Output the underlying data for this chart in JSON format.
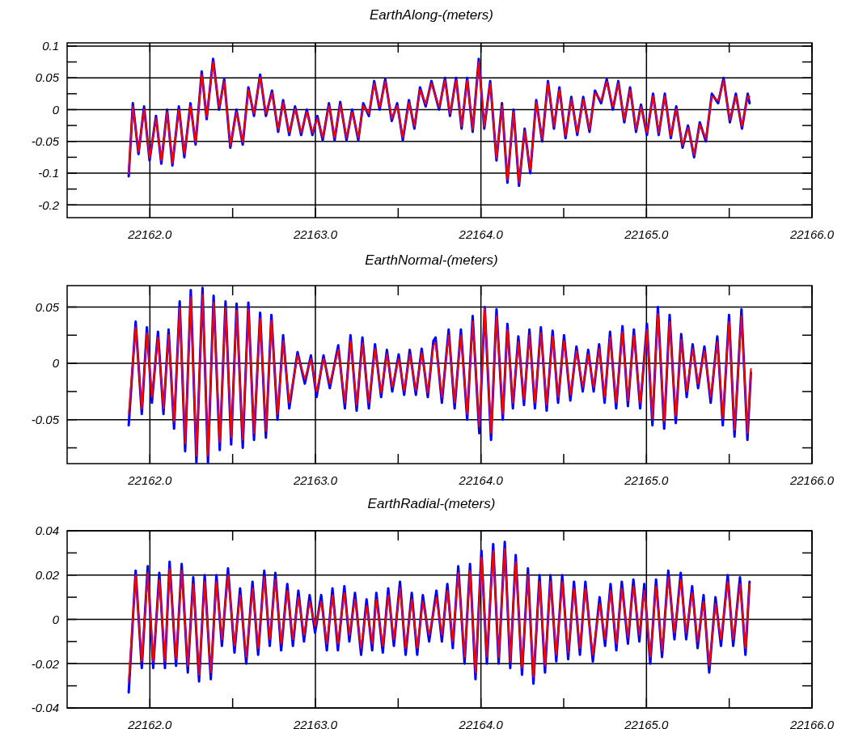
{
  "chart_data": [
    {
      "type": "line",
      "title": "EarthAlong-(meters)",
      "grid": true,
      "xlim": [
        22161.5,
        22166
      ],
      "xticks": [
        {
          "value": 22162,
          "label": "22162.0"
        },
        {
          "value": 22162.5,
          "label": null
        },
        {
          "value": 22163,
          "label": "22163.0"
        },
        {
          "value": 22163.5,
          "label": null
        },
        {
          "value": 22164,
          "label": "22164.0"
        },
        {
          "value": 22164.5,
          "label": null
        },
        {
          "value": 22165,
          "label": "22165.0"
        },
        {
          "value": 22165.5,
          "label": null
        },
        {
          "value": 22166,
          "label": "22166.0"
        }
      ],
      "ylim": [
        -0.17,
        0.105
      ],
      "yticks": [
        0.1,
        {
          "value": 0.075,
          "label": null
        },
        0.05,
        {
          "value": 0.025,
          "label": null
        },
        0,
        {
          "value": -0.025,
          "label": null
        },
        -0.05,
        {
          "value": -0.075,
          "label": null
        },
        -0.1,
        {
          "value": -0.125,
          "label": null
        },
        {
          "value": -0.15,
          "label": "-0.2"
        }
      ],
      "x": [
        22161.872,
        22161.897,
        22161.931,
        22161.965,
        22161.998,
        22162.037,
        22162.069,
        22162.104,
        22162.136,
        22162.175,
        22162.208,
        22162.245,
        22162.276,
        22162.313,
        22162.343,
        22162.382,
        22162.418,
        22162.449,
        22162.486,
        22162.523,
        22162.561,
        22162.595,
        22162.629,
        22162.666,
        22162.701,
        22162.738,
        22162.775,
        22162.805,
        22162.842,
        22162.877,
        22162.914,
        22162.948,
        22162.982,
        22163.012,
        22163.044,
        22163.082,
        22163.116,
        22163.15,
        22163.188,
        22163.222,
        22163.259,
        22163.289,
        22163.323,
        22163.355,
        22163.388,
        22163.422,
        22163.461,
        22163.494,
        22163.528,
        22163.565,
        22163.598,
        22163.632,
        22163.666,
        22163.701,
        22163.747,
        22163.783,
        22163.813,
        22163.85,
        22163.883,
        22163.917,
        22163.95,
        22163.987,
        22164.02,
        22164.056,
        22164.094,
        22164.127,
        22164.16,
        22164.197,
        22164.23,
        22164.264,
        22164.298,
        22164.334,
        22164.37,
        22164.405,
        22164.441,
        22164.474,
        22164.511,
        22164.546,
        22164.582,
        22164.618,
        22164.656,
        22164.689,
        22164.726,
        22164.76,
        22164.797,
        22164.83,
        22164.866,
        22164.901,
        22164.937,
        22164.967,
        22165.003,
        22165.04,
        22165.074,
        22165.111,
        22165.147,
        22165.18,
        22165.218,
        22165.251,
        22165.288,
        22165.322,
        22165.359,
        22165.395,
        22165.433,
        22165.466,
        22165.504,
        22165.54,
        22165.577,
        22165.612,
        22165.623
      ],
      "series": [
        {
          "color": "#0000ff",
          "values": [
            -0.105,
            0.01,
            -0.07,
            0.005,
            -0.08,
            -0.01,
            -0.085,
            0.0,
            -0.088,
            0.005,
            -0.075,
            0.01,
            -0.055,
            0.06,
            -0.015,
            0.08,
            0.0,
            0.048,
            -0.06,
            0.0,
            -0.055,
            0.035,
            -0.01,
            0.055,
            -0.01,
            0.03,
            -0.035,
            0.015,
            -0.04,
            0.005,
            -0.04,
            0.0,
            -0.04,
            -0.01,
            -0.048,
            0.01,
            -0.048,
            0.012,
            -0.048,
            0.0,
            -0.048,
            0.01,
            -0.01,
            0.045,
            0.0,
            0.048,
            -0.018,
            0.01,
            -0.048,
            0.015,
            -0.03,
            0.035,
            0.005,
            0.045,
            0.0,
            0.05,
            -0.01,
            0.05,
            -0.03,
            0.05,
            -0.035,
            0.08,
            -0.03,
            0.045,
            -0.08,
            0.01,
            -0.115,
            0.0,
            -0.12,
            -0.03,
            -0.1,
            0.015,
            -0.05,
            0.045,
            -0.03,
            0.035,
            -0.045,
            0.02,
            -0.04,
            0.02,
            -0.035,
            0.03,
            0.01,
            0.048,
            0.0,
            0.045,
            -0.02,
            0.035,
            -0.035,
            0.008,
            -0.04,
            0.025,
            -0.04,
            0.025,
            -0.045,
            0.005,
            -0.06,
            -0.025,
            -0.075,
            -0.02,
            -0.05,
            0.025,
            0.01,
            0.05,
            -0.02,
            0.025,
            -0.03,
            0.025,
            0.01
          ]
        },
        {
          "color": "#ff0000",
          "values": [
            -0.1,
            0.005,
            -0.066,
            0.0,
            -0.076,
            -0.014,
            -0.08,
            -0.004,
            -0.084,
            0.0,
            -0.07,
            0.006,
            -0.051,
            0.055,
            -0.011,
            0.075,
            0.004,
            0.044,
            -0.056,
            -0.004,
            -0.051,
            0.031,
            -0.006,
            0.051,
            -0.006,
            0.026,
            -0.031,
            0.011,
            -0.036,
            0.001,
            -0.036,
            -0.004,
            -0.036,
            -0.014,
            -0.044,
            0.006,
            -0.044,
            0.008,
            -0.044,
            -0.004,
            -0.044,
            0.006,
            -0.006,
            0.041,
            0.004,
            0.044,
            -0.014,
            0.006,
            -0.044,
            0.011,
            -0.026,
            0.031,
            0.009,
            0.041,
            0.004,
            0.046,
            -0.006,
            0.046,
            -0.026,
            0.046,
            -0.031,
            0.075,
            -0.026,
            0.041,
            -0.076,
            0.006,
            -0.11,
            -0.004,
            -0.115,
            -0.034,
            -0.095,
            0.011,
            -0.046,
            0.041,
            -0.026,
            0.031,
            -0.041,
            0.016,
            -0.036,
            0.016,
            -0.031,
            0.026,
            0.014,
            0.044,
            0.004,
            0.041,
            -0.016,
            0.031,
            -0.031,
            0.004,
            -0.036,
            0.021,
            -0.036,
            0.021,
            -0.041,
            0.001,
            -0.056,
            -0.029,
            -0.071,
            -0.024,
            -0.046,
            0.021,
            0.014,
            0.046,
            -0.016,
            0.021,
            -0.026,
            0.021,
            0.02
          ]
        }
      ]
    },
    {
      "type": "line",
      "title": "EarthNormal-(meters)",
      "grid": true,
      "xlim": [
        22161.5,
        22166
      ],
      "xticks": [
        {
          "value": 22162,
          "label": "22162.0"
        },
        {
          "value": 22162.5,
          "label": null
        },
        {
          "value": 22163,
          "label": "22163.0"
        },
        {
          "value": 22163.5,
          "label": null
        },
        {
          "value": 22164,
          "label": "22164.0"
        },
        {
          "value": 22164.5,
          "label": null
        },
        {
          "value": 22165,
          "label": "22165.0"
        },
        {
          "value": 22165.5,
          "label": null
        },
        {
          "value": 22166,
          "label": "22166.0"
        }
      ],
      "ylim": [
        -0.089,
        0.069
      ],
      "yticks": [
        0.05,
        {
          "value": 0.025,
          "label": null
        },
        0,
        {
          "value": -0.025,
          "label": null
        },
        -0.05,
        {
          "value": -0.075,
          "label": null
        }
      ],
      "x": [
        22161.872,
        22161.914,
        22161.951,
        22161.982,
        22162.012,
        22162.049,
        22162.082,
        22162.113,
        22162.146,
        22162.18,
        22162.213,
        22162.247,
        22162.281,
        22162.318,
        22162.351,
        22162.385,
        22162.422,
        22162.457,
        22162.491,
        22162.524,
        22162.561,
        22162.595,
        22162.629,
        22162.666,
        22162.701,
        22162.734,
        22162.771,
        22162.805,
        22162.842,
        22162.892,
        22162.936,
        22162.973,
        22163.007,
        22163.049,
        22163.087,
        22163.138,
        22163.178,
        22163.212,
        22163.249,
        22163.284,
        22163.323,
        22163.36,
        22163.397,
        22163.432,
        22163.464,
        22163.503,
        22163.536,
        22163.57,
        22163.607,
        22163.642,
        22163.679,
        22163.713,
        22163.726,
        22163.764,
        22163.805,
        22163.841,
        22163.879,
        22163.917,
        22163.95,
        22163.99,
        22164.023,
        22164.061,
        22164.094,
        22164.132,
        22164.16,
        22164.193,
        22164.226,
        22164.26,
        22164.293,
        22164.326,
        22164.362,
        22164.397,
        22164.433,
        22164.466,
        22164.502,
        22164.54,
        22164.577,
        22164.615,
        22164.648,
        22164.681,
        22164.714,
        22164.747,
        22164.78,
        22164.817,
        22164.855,
        22164.888,
        22164.924,
        22164.962,
        22165.003,
        22165.036,
        22165.069,
        22165.107,
        22165.14,
        22165.177,
        22165.21,
        22165.243,
        22165.279,
        22165.312,
        22165.35,
        22165.388,
        22165.428,
        22165.461,
        22165.499,
        22165.532,
        22165.574,
        22165.61,
        22165.631
      ],
      "series": [
        {
          "color": "#0000ff",
          "values": [
            -0.055,
            0.037,
            -0.045,
            0.032,
            -0.035,
            0.028,
            -0.045,
            0.03,
            -0.058,
            0.055,
            -0.078,
            0.065,
            -0.088,
            0.067,
            -0.088,
            0.06,
            -0.077,
            0.055,
            -0.072,
            0.053,
            -0.075,
            0.054,
            -0.068,
            0.045,
            -0.066,
            0.043,
            -0.05,
            0.025,
            -0.04,
            0.01,
            -0.018,
            0.007,
            -0.03,
            0.007,
            -0.022,
            0.016,
            -0.04,
            0.025,
            -0.042,
            0.023,
            -0.04,
            0.017,
            -0.03,
            0.012,
            -0.025,
            0.008,
            -0.028,
            0.012,
            -0.028,
            0.013,
            -0.03,
            0.02,
            0.023,
            -0.035,
            0.03,
            -0.04,
            0.03,
            -0.05,
            0.042,
            -0.062,
            0.05,
            -0.068,
            0.048,
            -0.05,
            0.035,
            -0.04,
            0.024,
            -0.037,
            0.03,
            -0.04,
            0.032,
            -0.042,
            0.029,
            -0.035,
            0.025,
            -0.033,
            0.015,
            -0.025,
            0.012,
            -0.025,
            0.017,
            -0.035,
            0.028,
            -0.04,
            0.033,
            -0.038,
            0.03,
            -0.04,
            0.035,
            -0.055,
            0.05,
            -0.058,
            0.043,
            -0.053,
            0.026,
            -0.03,
            0.017,
            -0.022,
            0.015,
            -0.035,
            0.024,
            -0.055,
            0.043,
            -0.065,
            0.048,
            -0.068,
            -0.008
          ]
        },
        {
          "color": "#ff0000",
          "values": [
            -0.045,
            0.032,
            -0.04,
            0.027,
            -0.03,
            0.023,
            -0.04,
            0.025,
            -0.052,
            0.049,
            -0.071,
            0.059,
            -0.082,
            0.061,
            -0.082,
            0.054,
            -0.07,
            0.049,
            -0.066,
            0.047,
            -0.068,
            0.048,
            -0.062,
            0.04,
            -0.06,
            0.038,
            -0.045,
            0.02,
            -0.035,
            0.007,
            -0.014,
            0.004,
            -0.025,
            0.004,
            -0.018,
            0.012,
            -0.035,
            0.02,
            -0.037,
            0.018,
            -0.035,
            0.013,
            -0.026,
            0.008,
            -0.021,
            0.004,
            -0.024,
            0.008,
            -0.024,
            0.009,
            -0.026,
            0.016,
            0.018,
            -0.03,
            0.025,
            -0.035,
            0.025,
            -0.045,
            0.037,
            -0.056,
            0.049,
            -0.062,
            0.042,
            -0.045,
            0.03,
            -0.035,
            0.019,
            -0.032,
            0.025,
            -0.035,
            0.027,
            -0.037,
            0.024,
            -0.03,
            0.02,
            -0.028,
            0.011,
            -0.021,
            0.008,
            -0.021,
            0.013,
            -0.03,
            0.023,
            -0.035,
            0.028,
            -0.033,
            0.025,
            -0.035,
            0.03,
            -0.049,
            0.044,
            -0.052,
            0.037,
            -0.047,
            0.021,
            -0.025,
            0.013,
            -0.018,
            0.011,
            -0.03,
            0.019,
            -0.049,
            0.037,
            -0.059,
            0.042,
            -0.062,
            -0.005
          ]
        }
      ]
    },
    {
      "type": "line",
      "title": "EarthRadial-(meters)",
      "grid": true,
      "xlim": [
        22161.5,
        22166
      ],
      "xticks": [
        {
          "value": 22162,
          "label": "22162.0"
        },
        {
          "value": 22162.5,
          "label": null
        },
        {
          "value": 22163,
          "label": "22163.0"
        },
        {
          "value": 22163.5,
          "label": null
        },
        {
          "value": 22164,
          "label": "22164.0"
        },
        {
          "value": 22164.5,
          "label": null
        },
        {
          "value": 22165,
          "label": "22165.0"
        },
        {
          "value": 22165.5,
          "label": null
        },
        {
          "value": 22166,
          "label": "22166.0"
        }
      ],
      "ylim": [
        -0.04,
        0.04
      ],
      "yticks": [
        0.04,
        {
          "value": 0.03,
          "label": null
        },
        0.02,
        {
          "value": 0.01,
          "label": null
        },
        0,
        {
          "value": -0.01,
          "label": null
        },
        -0.02,
        {
          "value": -0.03,
          "label": null
        },
        -0.04
      ],
      "x": [
        22161.872,
        22161.914,
        22161.951,
        22161.987,
        22162.02,
        22162.057,
        22162.091,
        22162.119,
        22162.158,
        22162.192,
        22162.229,
        22162.262,
        22162.297,
        22162.331,
        22162.368,
        22162.402,
        22162.435,
        22162.472,
        22162.511,
        22162.545,
        22162.582,
        22162.62,
        22162.654,
        22162.691,
        22162.724,
        22162.758,
        22162.793,
        22162.83,
        22162.864,
        22162.897,
        22162.931,
        22162.965,
        22162.998,
        22163.035,
        22163.069,
        22163.103,
        22163.136,
        22163.175,
        22163.205,
        22163.239,
        22163.276,
        22163.309,
        22163.343,
        22163.368,
        22163.407,
        22163.44,
        22163.474,
        22163.511,
        22163.545,
        22163.582,
        22163.615,
        22163.649,
        22163.687,
        22163.731,
        22163.764,
        22163.797,
        22163.83,
        22163.863,
        22163.901,
        22163.934,
        22163.967,
        22164.003,
        22164.036,
        22164.074,
        22164.107,
        22164.144,
        22164.177,
        22164.21,
        22164.248,
        22164.284,
        22164.317,
        22164.354,
        22164.387,
        22164.42,
        22164.455,
        22164.491,
        22164.527,
        22164.562,
        22164.598,
        22164.631,
        22164.676,
        22164.717,
        22164.75,
        22164.783,
        22164.818,
        22164.851,
        22164.888,
        22164.921,
        22164.957,
        22164.987,
        22165.023,
        22165.058,
        22165.094,
        22165.132,
        22165.169,
        22165.207,
        22165.24,
        22165.276,
        22165.309,
        22165.345,
        22165.379,
        22165.417,
        22165.45,
        22165.491,
        22165.524,
        22165.565,
        22165.598,
        22165.623
      ],
      "series": [
        {
          "color": "#0000ff",
          "values": [
            -0.033,
            0.022,
            -0.022,
            0.024,
            -0.022,
            0.021,
            -0.022,
            0.026,
            -0.021,
            0.025,
            -0.024,
            0.019,
            -0.028,
            0.02,
            -0.027,
            0.02,
            -0.012,
            0.023,
            -0.015,
            0.014,
            -0.02,
            0.017,
            -0.016,
            0.022,
            -0.012,
            0.021,
            -0.014,
            0.016,
            -0.012,
            0.013,
            -0.01,
            0.011,
            -0.006,
            0.011,
            -0.014,
            0.014,
            -0.014,
            0.015,
            -0.01,
            0.012,
            -0.016,
            0.009,
            -0.014,
            0.012,
            -0.015,
            0.014,
            -0.012,
            0.017,
            -0.016,
            0.012,
            -0.016,
            0.011,
            -0.01,
            0.013,
            -0.01,
            0.016,
            -0.013,
            0.024,
            -0.02,
            0.025,
            -0.027,
            0.031,
            -0.02,
            0.034,
            -0.02,
            0.035,
            -0.022,
            0.029,
            -0.025,
            0.023,
            -0.029,
            0.02,
            -0.024,
            0.02,
            -0.019,
            0.02,
            -0.018,
            0.017,
            -0.016,
            0.017,
            -0.019,
            0.01,
            -0.012,
            0.016,
            -0.014,
            0.017,
            -0.011,
            0.018,
            -0.01,
            0.016,
            -0.02,
            0.018,
            -0.017,
            0.022,
            -0.009,
            0.021,
            -0.009,
            0.015,
            -0.013,
            0.011,
            -0.024,
            0.01,
            -0.012,
            0.02,
            -0.012,
            0.019,
            -0.016,
            0.017
          ]
        },
        {
          "color": "#ff0000",
          "values": [
            -0.028,
            0.02,
            -0.019,
            0.021,
            -0.019,
            0.018,
            -0.019,
            0.023,
            -0.018,
            0.022,
            -0.021,
            0.016,
            -0.025,
            0.017,
            -0.024,
            0.017,
            -0.009,
            0.02,
            -0.012,
            0.011,
            -0.017,
            0.014,
            -0.013,
            0.019,
            -0.009,
            0.018,
            -0.011,
            0.013,
            -0.009,
            0.01,
            -0.007,
            0.008,
            -0.003,
            0.008,
            -0.011,
            0.011,
            -0.011,
            0.012,
            -0.007,
            0.009,
            -0.013,
            0.006,
            -0.011,
            0.009,
            -0.012,
            0.011,
            -0.009,
            0.014,
            -0.013,
            0.009,
            -0.013,
            0.008,
            -0.007,
            0.01,
            -0.007,
            0.013,
            -0.01,
            0.021,
            -0.017,
            0.022,
            -0.024,
            0.028,
            -0.017,
            0.031,
            -0.017,
            0.032,
            -0.019,
            0.026,
            -0.022,
            0.02,
            -0.026,
            0.017,
            -0.021,
            0.017,
            -0.016,
            0.017,
            -0.015,
            0.014,
            -0.013,
            0.014,
            -0.016,
            0.007,
            -0.009,
            0.013,
            -0.011,
            0.014,
            -0.008,
            0.015,
            -0.007,
            0.013,
            -0.017,
            0.015,
            -0.014,
            0.019,
            -0.006,
            0.018,
            -0.006,
            0.012,
            -0.01,
            0.008,
            -0.021,
            0.007,
            -0.009,
            0.017,
            -0.009,
            0.016,
            -0.013,
            0.016
          ]
        }
      ]
    }
  ]
}
